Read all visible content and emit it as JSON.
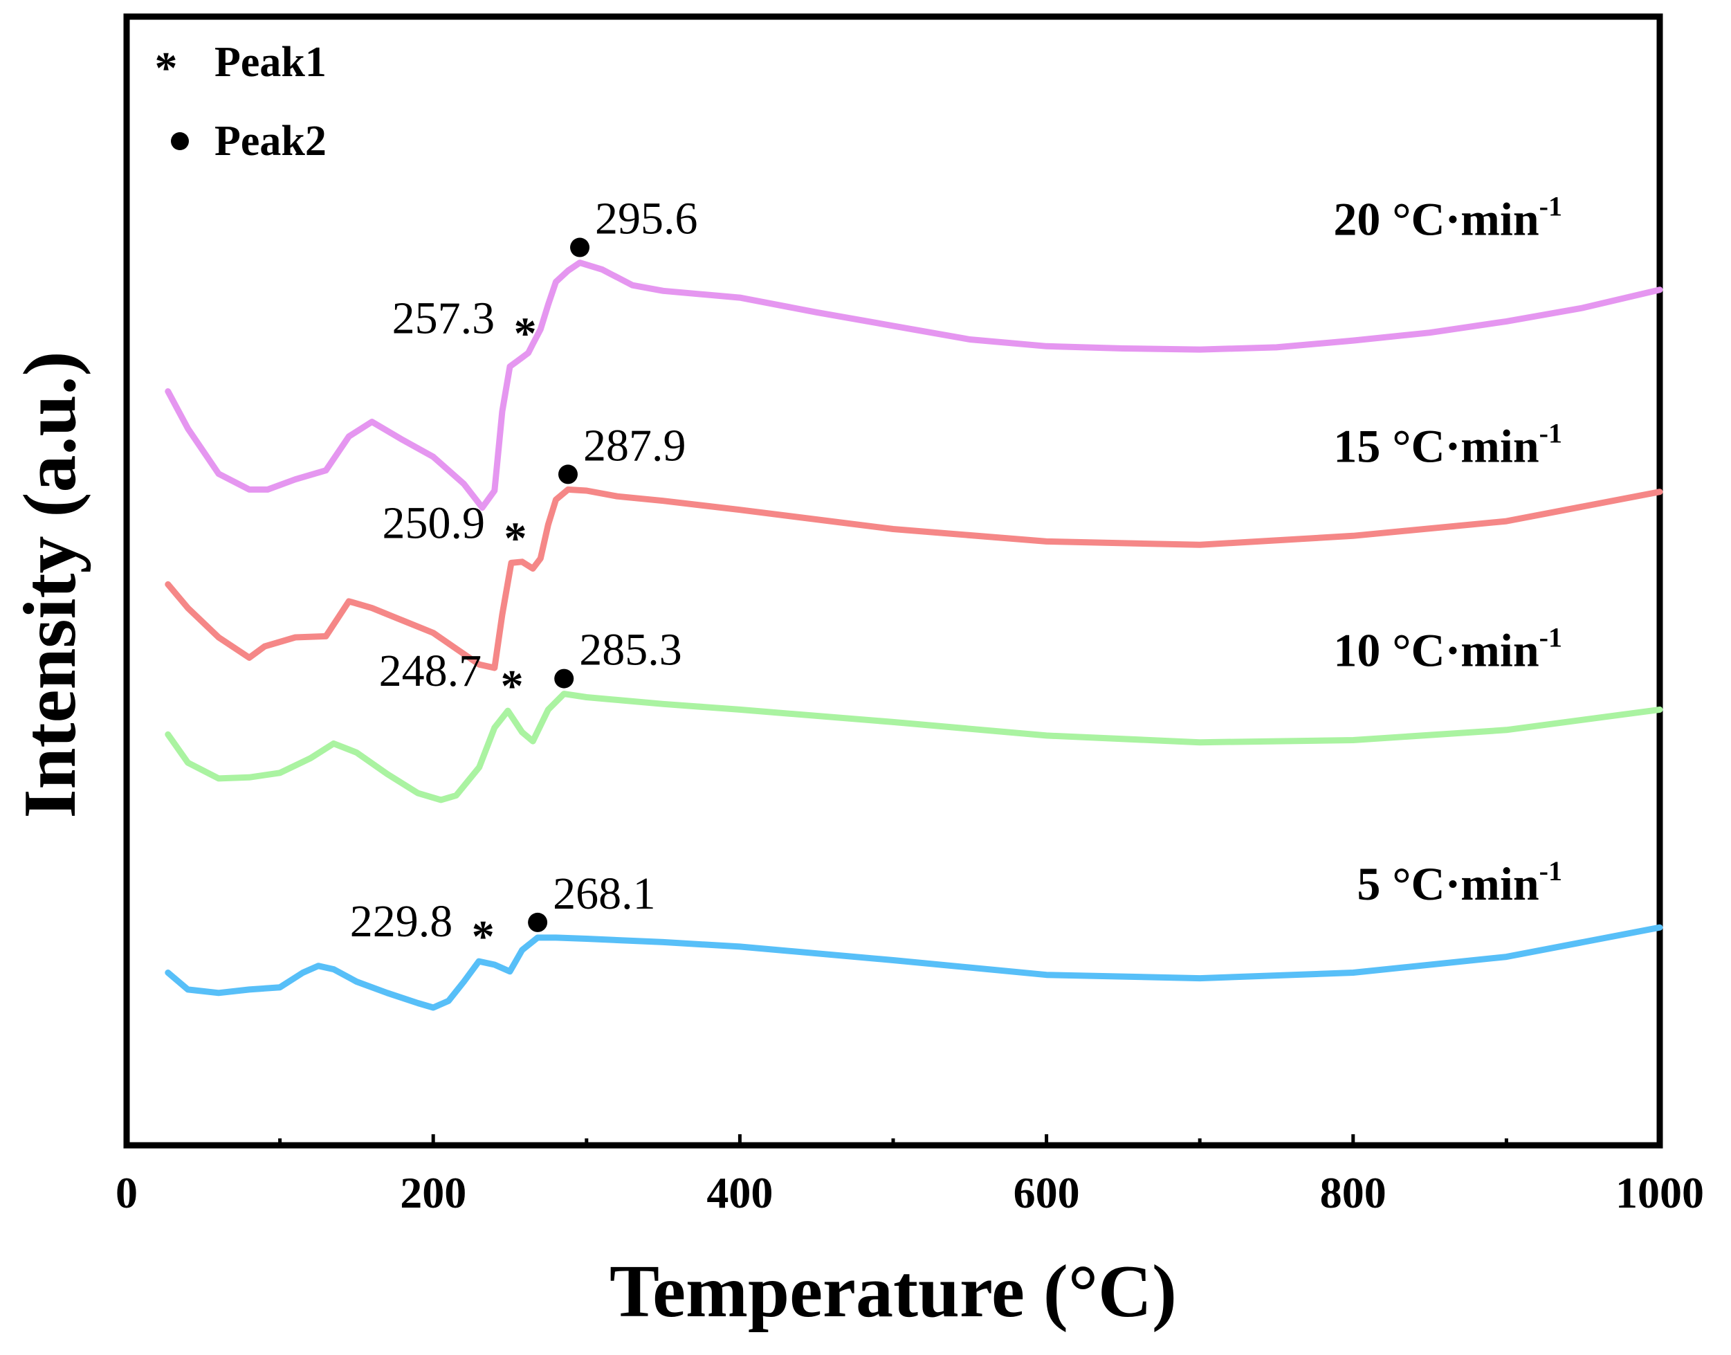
{
  "chart_data": {
    "type": "line",
    "xlabel": "Temperature (°C)",
    "ylabel": "Intensity (a.u.)",
    "xlim": [
      0,
      1000
    ],
    "ylim": [
      0,
      100
    ],
    "x_ticks": [
      "0",
      "200",
      "400",
      "600",
      "800",
      "1000"
    ],
    "x_tick_values": [
      0,
      200,
      400,
      600,
      800,
      1000
    ],
    "x_minor_ticks": [
      100,
      300,
      500,
      700,
      900
    ],
    "legend": [
      {
        "symbol": "*",
        "marker": "star",
        "label": "Peak1"
      },
      {
        "symbol": "•",
        "marker": "dot",
        "label": "Peak2"
      }
    ],
    "series": [
      {
        "name": "20 °C·min-1",
        "label_main": "20 °C·min",
        "label_sup": "-1",
        "color": "#e596f0",
        "x": [
          27,
          40,
          60,
          80,
          92,
          110,
          130,
          145,
          160,
          180,
          200,
          220,
          232,
          240,
          245,
          250,
          255,
          258,
          262,
          265,
          270,
          275,
          280,
          288,
          295.6,
          310,
          330,
          350,
          400,
          450,
          500,
          550,
          600,
          650,
          700,
          750,
          800,
          850,
          900,
          950,
          1000
        ],
        "y": [
          66.8,
          63.5,
          59.5,
          58.1,
          58.1,
          59.0,
          59.8,
          62.8,
          64.1,
          62.5,
          61.0,
          58.6,
          56.5,
          58.0,
          65.0,
          69.0,
          69.5,
          69.8,
          70.2,
          71.0,
          72.3,
          74.5,
          76.5,
          77.5,
          78.2,
          77.6,
          76.2,
          75.7,
          75.1,
          73.8,
          72.6,
          71.4,
          70.8,
          70.6,
          70.5,
          70.7,
          71.3,
          72.0,
          73.0,
          74.2,
          75.8
        ],
        "peak1": {
          "x": 257.3,
          "label": "257.3"
        },
        "peak2": {
          "x": 295.6,
          "label": "295.6"
        }
      },
      {
        "name": "15 °C·min-1",
        "label_main": "15 °C·min",
        "label_sup": "-1",
        "color": "#f58787",
        "x": [
          27,
          40,
          60,
          80,
          90,
          110,
          130,
          145,
          160,
          180,
          200,
          215,
          230,
          240,
          245,
          250.9,
          258,
          265,
          270,
          275,
          280,
          287.9,
          300,
          320,
          350,
          400,
          500,
          600,
          700,
          800,
          900,
          1000
        ],
        "y": [
          49.7,
          47.6,
          45.0,
          43.2,
          44.2,
          45.0,
          45.1,
          48.2,
          47.6,
          46.5,
          45.4,
          44.0,
          42.6,
          42.3,
          47.0,
          51.6,
          51.7,
          51.1,
          52.0,
          55.0,
          57.2,
          58.1,
          58.0,
          57.5,
          57.1,
          56.3,
          54.6,
          53.5,
          53.2,
          54.0,
          55.3,
          57.9
        ],
        "peak1": {
          "x": 250.9,
          "label": "250.9"
        },
        "peak2": {
          "x": 287.9,
          "label": "287.9"
        }
      },
      {
        "name": "10 °C·min-1",
        "label_main": "10 °C·min",
        "label_sup": "-1",
        "color": "#aaf3a1",
        "x": [
          27,
          40,
          60,
          80,
          100,
          120,
          135,
          150,
          170,
          190,
          205,
          215,
          230,
          240,
          248.7,
          258,
          265,
          275,
          285.3,
          300,
          350,
          400,
          500,
          600,
          700,
          800,
          900,
          1000
        ],
        "y": [
          36.4,
          33.9,
          32.5,
          32.6,
          33.0,
          34.3,
          35.6,
          34.8,
          32.9,
          31.2,
          30.6,
          31.0,
          33.5,
          37.0,
          38.5,
          36.6,
          35.8,
          38.6,
          40.0,
          39.7,
          39.1,
          38.6,
          37.5,
          36.3,
          35.7,
          35.9,
          36.8,
          38.6
        ],
        "peak1": {
          "x": 248.7,
          "label": "248.7"
        },
        "peak2": {
          "x": 285.3,
          "label": "285.3"
        }
      },
      {
        "name": "5 °C·min-1",
        "label_main": "5 °C·min",
        "label_sup": "-1",
        "color": "#57bff8",
        "x": [
          27,
          40,
          60,
          80,
          100,
          115,
          125,
          135,
          150,
          170,
          190,
          200,
          210,
          220,
          229.8,
          240,
          250,
          258,
          268.1,
          280,
          300,
          350,
          400,
          500,
          600,
          700,
          800,
          900,
          1000
        ],
        "y": [
          15.3,
          13.8,
          13.5,
          13.8,
          14.0,
          15.3,
          15.9,
          15.6,
          14.5,
          13.5,
          12.6,
          12.2,
          12.8,
          14.5,
          16.3,
          16.0,
          15.4,
          17.3,
          18.4,
          18.4,
          18.3,
          18.0,
          17.6,
          16.4,
          15.1,
          14.8,
          15.3,
          16.7,
          19.3
        ],
        "peak1": {
          "x": 229.8,
          "label": "229.8"
        },
        "peak2": {
          "x": 268.1,
          "label": "268.1"
        }
      }
    ]
  }
}
